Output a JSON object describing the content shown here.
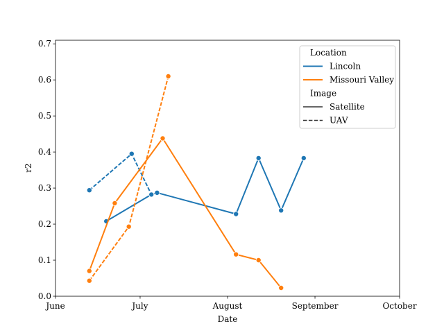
{
  "chart_data": {
    "type": "line",
    "xlabel": "Date",
    "ylabel": "r2",
    "xlim": [
      "2022-06-01",
      "2022-10-01"
    ],
    "ylim": [
      0.0,
      0.71
    ],
    "x_ticks": [
      {
        "date": "2022-06-01",
        "label": "June"
      },
      {
        "date": "2022-07-01",
        "label": "July"
      },
      {
        "date": "2022-08-01",
        "label": "August"
      },
      {
        "date": "2022-09-01",
        "label": "September"
      },
      {
        "date": "2022-10-01",
        "label": "October"
      }
    ],
    "y_ticks": [
      0.0,
      0.1,
      0.2,
      0.3,
      0.4,
      0.5,
      0.6,
      0.7
    ],
    "y_tick_labels": [
      "0.0",
      "0.1",
      "0.2",
      "0.3",
      "0.4",
      "0.5",
      "0.6",
      "0.7"
    ],
    "grid": false,
    "legend": {
      "placement": "top-right",
      "hue_title": "Location",
      "style_title": "Image",
      "hue_entries": [
        {
          "name": "Lincoln",
          "color": "#1f77b4"
        },
        {
          "name": "Missouri Valley",
          "color": "#ff7f0e"
        }
      ],
      "style_entries": [
        {
          "name": "Satellite",
          "dash": "solid"
        },
        {
          "name": "UAV",
          "dash": "dashed"
        }
      ]
    },
    "series": [
      {
        "location": "Lincoln",
        "image": "Satellite",
        "color": "#1f77b4",
        "dash": "solid",
        "points": [
          {
            "x": "2022-06-19",
            "y": 0.208
          },
          {
            "x": "2022-07-05",
            "y": 0.282
          },
          {
            "x": "2022-07-07",
            "y": 0.287
          },
          {
            "x": "2022-08-04",
            "y": 0.228
          },
          {
            "x": "2022-08-12",
            "y": 0.383
          },
          {
            "x": "2022-08-20",
            "y": 0.238
          },
          {
            "x": "2022-08-28",
            "y": 0.383
          }
        ]
      },
      {
        "location": "Lincoln",
        "image": "UAV",
        "color": "#1f77b4",
        "dash": "dashed",
        "points": [
          {
            "x": "2022-06-13",
            "y": 0.294
          },
          {
            "x": "2022-06-28",
            "y": 0.395
          },
          {
            "x": "2022-07-05",
            "y": 0.282
          }
        ]
      },
      {
        "location": "Missouri Valley",
        "image": "Satellite",
        "color": "#ff7f0e",
        "dash": "solid",
        "points": [
          {
            "x": "2022-06-13",
            "y": 0.07
          },
          {
            "x": "2022-06-22",
            "y": 0.258
          },
          {
            "x": "2022-07-09",
            "y": 0.438
          },
          {
            "x": "2022-08-04",
            "y": 0.116
          },
          {
            "x": "2022-08-12",
            "y": 0.1
          },
          {
            "x": "2022-08-20",
            "y": 0.023
          }
        ]
      },
      {
        "location": "Missouri Valley",
        "image": "UAV",
        "color": "#ff7f0e",
        "dash": "dashed",
        "points": [
          {
            "x": "2022-06-13",
            "y": 0.043
          },
          {
            "x": "2022-06-27",
            "y": 0.193
          },
          {
            "x": "2022-07-11",
            "y": 0.61
          }
        ]
      }
    ]
  }
}
